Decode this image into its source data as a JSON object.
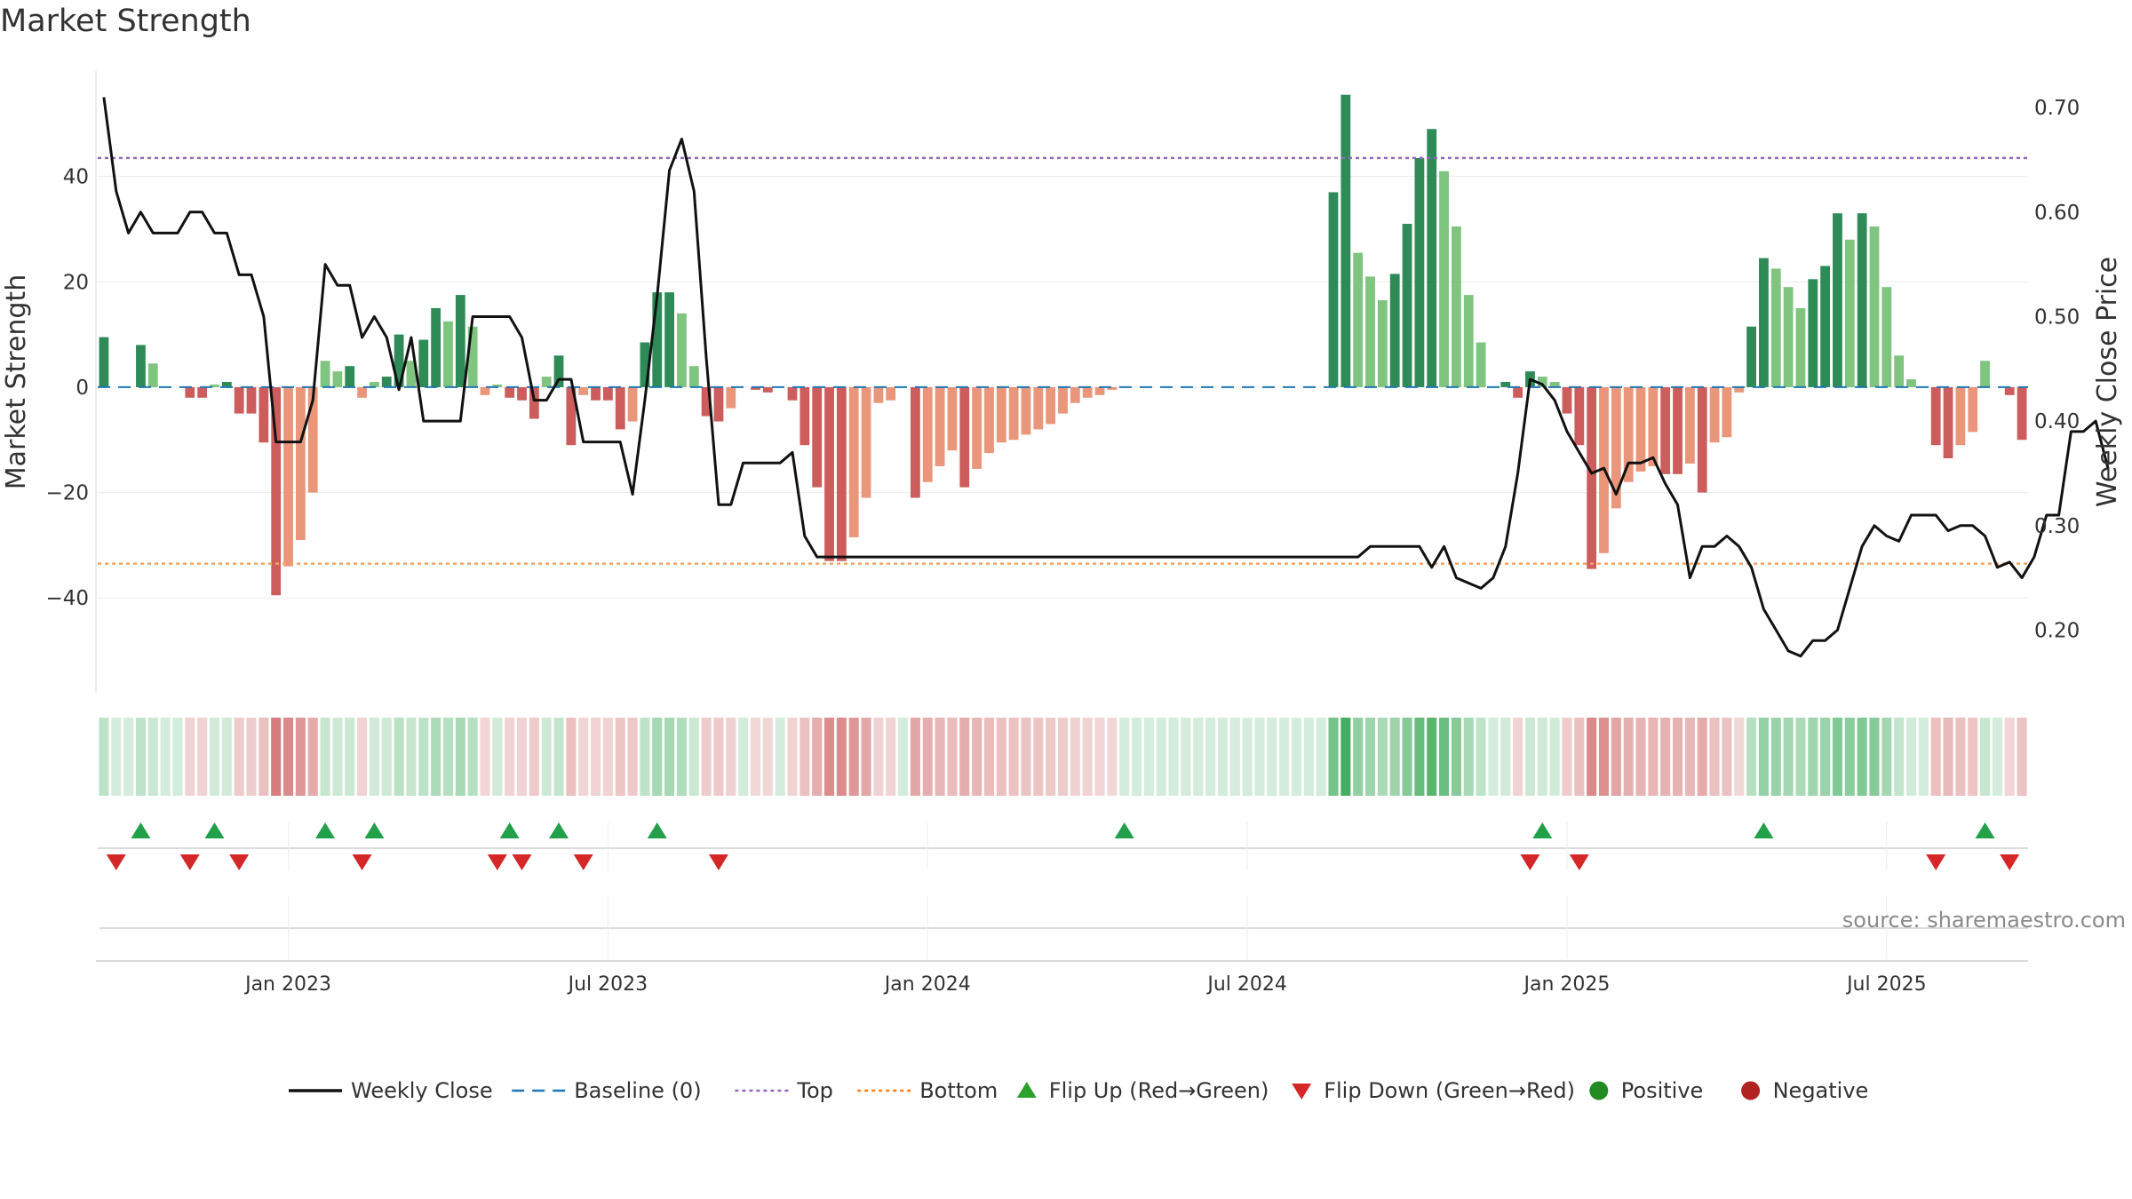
{
  "title": "Market Strength",
  "source_note": "source: sharemaestro.com",
  "axes": {
    "left_label": "Market Strength",
    "right_label": "Weekly Close Price",
    "left_ticks": [
      {
        "value": 40,
        "label": "40"
      },
      {
        "value": 20,
        "label": "20"
      },
      {
        "value": 0,
        "label": "0"
      },
      {
        "value": -20,
        "label": "−20"
      },
      {
        "value": -40,
        "label": "−40"
      }
    ],
    "right_ticks": [
      {
        "value": 0.7,
        "label": "0.70"
      },
      {
        "value": 0.6,
        "label": "0.60"
      },
      {
        "value": 0.5,
        "label": "0.50"
      },
      {
        "value": 0.4,
        "label": "0.40"
      },
      {
        "value": 0.3,
        "label": "0.30"
      },
      {
        "value": 0.2,
        "label": "0.20"
      }
    ],
    "date_ticks": [
      {
        "week": 15,
        "label": "Jan 2023"
      },
      {
        "week": 41,
        "label": "Jul 2023"
      },
      {
        "week": 67,
        "label": "Jan 2024"
      },
      {
        "week": 93,
        "label": "Jul 2024"
      },
      {
        "week": 119,
        "label": "Jan 2025"
      },
      {
        "week": 145,
        "label": "Jul 2025"
      }
    ]
  },
  "legend": [
    {
      "key": "weekly_close",
      "label": "Weekly Close",
      "symbol": "line",
      "color": "#111111"
    },
    {
      "key": "baseline",
      "label": "Baseline (0)",
      "symbol": "dash",
      "color": "#1f77b4"
    },
    {
      "key": "top",
      "label": "Top",
      "symbol": "dot",
      "color": "#9467bd"
    },
    {
      "key": "bottom",
      "label": "Bottom",
      "symbol": "dot",
      "color": "#ff7f0e"
    },
    {
      "key": "flip_up",
      "label": "Flip Up (Red→Green)",
      "symbol": "tri-up",
      "color": "#2ca02c"
    },
    {
      "key": "flip_down",
      "label": "Flip Down (Green→Red)",
      "symbol": "tri-down",
      "color": "#d62728"
    },
    {
      "key": "positive",
      "label": "Positive",
      "symbol": "circle",
      "color": "#228b22"
    },
    {
      "key": "negative",
      "label": "Negative",
      "symbol": "circle",
      "color": "#b22222"
    }
  ],
  "colors": {
    "pos_strong": "#2e8b57",
    "pos_weak": "#7fc47f",
    "neg_strong": "#cd5c5c",
    "neg_weak": "#e9967a",
    "price_line": "#111111",
    "top_line": "#9467bd",
    "bottom_line": "#f4a460",
    "baseline": "#1f77b4"
  },
  "chart_data": {
    "type": "bar",
    "x_unit": "week",
    "series": [
      {
        "name": "Market Strength",
        "values": [
          9.5,
          0,
          0,
          8,
          4.5,
          0,
          0,
          -2,
          -2,
          0.5,
          1,
          -5,
          -5,
          -10.5,
          -39.5,
          -34,
          -29,
          -20,
          5,
          3,
          4,
          -2,
          1,
          2,
          10,
          5,
          9,
          15,
          12.5,
          17.5,
          11.5,
          -1.5,
          0.5,
          -2,
          -2.5,
          -6,
          2,
          6,
          -11,
          -1.5,
          -2.5,
          -2.5,
          -8,
          -6.5,
          8.5,
          18,
          18,
          14,
          4,
          -5.5,
          -6.5,
          -4,
          0,
          -0.5,
          -1,
          0,
          -2.5,
          -11,
          -19,
          -33,
          -33,
          -28.5,
          -21,
          -3,
          -2.5,
          0,
          -21,
          -18,
          -15,
          -12,
          -19,
          -15.5,
          -12.5,
          -10.5,
          -10,
          -9,
          -8,
          -7,
          -5,
          -3,
          -2,
          -1.5,
          -0.5,
          0,
          0,
          0,
          0,
          0,
          0,
          0,
          0,
          0,
          0,
          0,
          0,
          0,
          0,
          0,
          0,
          0,
          37,
          55.5,
          25.5,
          21,
          16.5,
          21.5,
          31,
          43.5,
          49,
          41,
          30.5,
          17.5,
          8.5,
          0,
          1,
          -2,
          3,
          2,
          1,
          -5,
          -11,
          -34.5,
          -31.5,
          -23,
          -18,
          -16,
          -15,
          -16.5,
          -16.5,
          -14.5,
          -20,
          -10.5,
          -9.5,
          -1,
          11.5,
          24.5,
          22.5,
          19,
          15,
          20.5,
          23,
          33,
          28,
          33,
          30.5,
          19,
          6,
          1.5,
          0,
          -11,
          -13.5,
          -11,
          -8.5,
          5,
          0,
          -1.5,
          -10
        ]
      },
      {
        "name": "Weekly Close",
        "values": [
          0.71,
          0.62,
          0.58,
          0.6,
          0.58,
          0.58,
          0.58,
          0.6,
          0.6,
          0.58,
          0.58,
          0.54,
          0.54,
          0.5,
          0.38,
          0.38,
          0.38,
          0.42,
          0.55,
          0.53,
          0.53,
          0.48,
          0.5,
          0.48,
          0.43,
          0.48,
          0.4,
          0.4,
          0.4,
          0.4,
          0.5,
          0.5,
          0.5,
          0.5,
          0.48,
          0.42,
          0.42,
          0.44,
          0.44,
          0.38,
          0.38,
          0.38,
          0.38,
          0.33,
          0.42,
          0.52,
          0.64,
          0.67,
          0.62,
          0.46,
          0.32,
          0.32,
          0.36,
          0.36,
          0.36,
          0.36,
          0.37,
          0.29,
          0.27,
          0.27,
          0.27,
          0.27,
          0.27,
          0.27,
          0.27,
          0.27,
          0.27,
          0.27,
          0.27,
          0.27,
          0.27,
          0.27,
          0.27,
          0.27,
          0.27,
          0.27,
          0.27,
          0.27,
          0.27,
          0.27,
          0.27,
          0.27,
          0.27,
          0.27,
          0.27,
          0.27,
          0.27,
          0.27,
          0.27,
          0.27,
          0.27,
          0.27,
          0.27,
          0.27,
          0.27,
          0.27,
          0.27,
          0.27,
          0.27,
          0.27,
          0.27,
          0.27,
          0.27,
          0.28,
          0.28,
          0.28,
          0.28,
          0.28,
          0.26,
          0.28,
          0.25,
          0.245,
          0.24,
          0.25,
          0.28,
          0.35,
          0.44,
          0.435,
          0.42,
          0.39,
          0.37,
          0.35,
          0.355,
          0.33,
          0.36,
          0.36,
          0.365,
          0.34,
          0.32,
          0.25,
          0.28,
          0.28,
          0.29,
          0.28,
          0.26,
          0.22,
          0.2,
          0.18,
          0.175,
          0.19,
          0.19,
          0.2,
          0.24,
          0.28,
          0.3,
          0.29,
          0.285,
          0.31,
          0.31,
          0.31,
          0.295,
          0.3,
          0.3,
          0.29,
          0.26,
          0.265,
          0.25,
          0.27,
          0.31,
          0.31,
          0.39,
          0.39,
          0.4,
          0.355
        ]
      }
    ],
    "y_left_range": [
      -58,
      60
    ],
    "y_right_range": [
      0.14,
      0.735
    ],
    "reference_lines": {
      "baseline": 0,
      "top": 43.5,
      "bottom": -33.5
    },
    "flip_up_weeks": [
      3,
      9,
      18,
      22,
      33,
      37,
      45,
      83,
      117,
      135,
      153
    ],
    "flip_down_weeks": [
      1,
      7,
      11,
      21,
      32,
      34,
      39,
      50,
      116,
      120,
      149,
      155
    ],
    "grid": true,
    "legend_position": "bottom"
  }
}
